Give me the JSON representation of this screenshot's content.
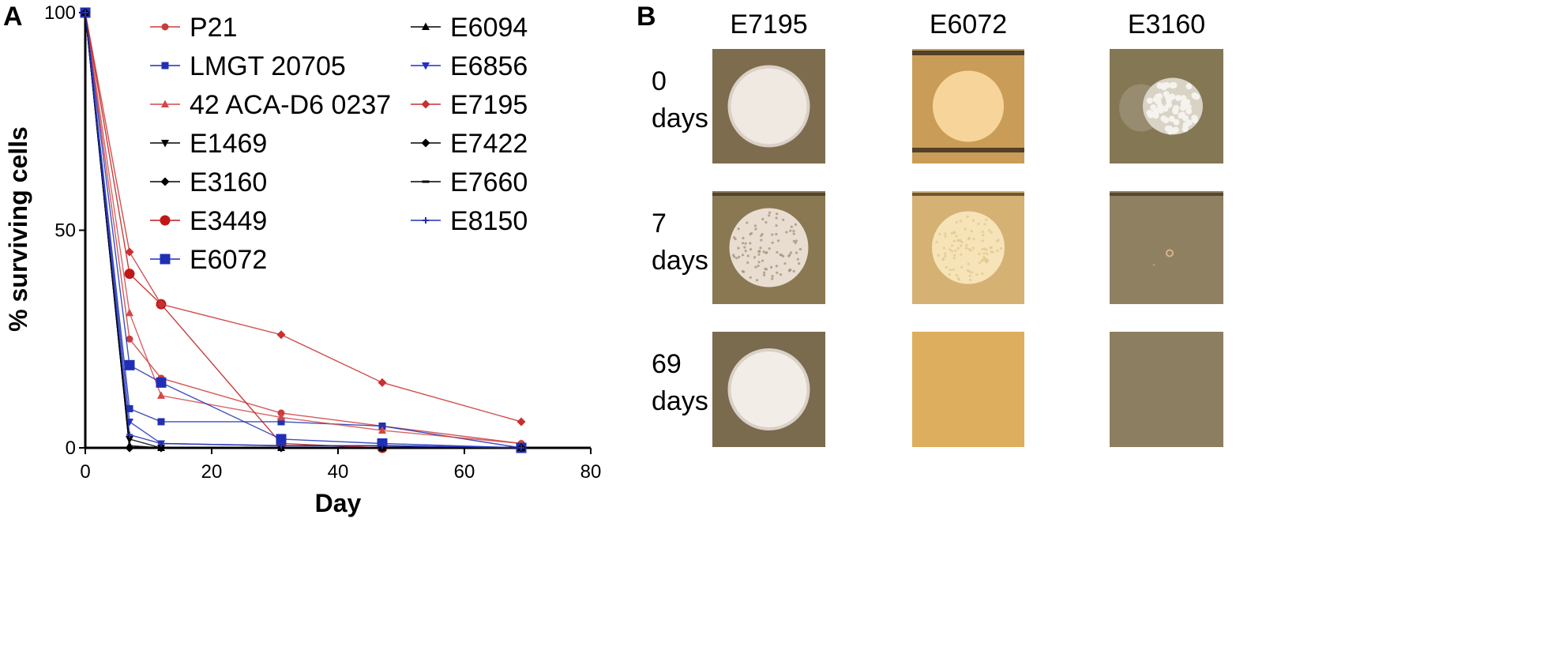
{
  "panel_a_label": "A",
  "panel_b_label": "B",
  "chart_data": {
    "type": "line",
    "title": "",
    "xlabel": "Day",
    "ylabel": "% surviving cells",
    "xlim": [
      0,
      80
    ],
    "ylim": [
      0,
      100
    ],
    "xticks": [
      0,
      20,
      40,
      60,
      80
    ],
    "yticks": [
      0,
      50,
      100
    ],
    "grid": false,
    "legend_position": "top-right",
    "series": [
      {
        "name": "P21",
        "color": "#cc3b3b",
        "marker": "circle",
        "x": [
          0,
          7,
          12,
          31,
          47,
          69
        ],
        "y": [
          100,
          25,
          16,
          8,
          5,
          1
        ]
      },
      {
        "name": "LMGT 20705",
        "color": "#2030b0",
        "marker": "square",
        "x": [
          0,
          7,
          12,
          31,
          47,
          69
        ],
        "y": [
          100,
          9,
          6,
          6,
          5,
          0
        ]
      },
      {
        "name": "42 ACA-D6 0237",
        "color": "#d24848",
        "marker": "triangle-up",
        "x": [
          0,
          7,
          12,
          31,
          47,
          69
        ],
        "y": [
          100,
          31,
          12,
          7,
          4,
          1
        ]
      },
      {
        "name": "E1469",
        "color": "#000000",
        "marker": "triangle-down",
        "x": [
          0,
          7,
          12,
          31,
          47,
          69
        ],
        "y": [
          100,
          2,
          0,
          0,
          0,
          0
        ]
      },
      {
        "name": "E3160",
        "color": "#000000",
        "marker": "diamond",
        "x": [
          0,
          7,
          12,
          31,
          47,
          69
        ],
        "y": [
          100,
          0,
          0,
          0,
          0,
          0
        ]
      },
      {
        "name": "E3449",
        "color": "#c01818",
        "marker": "circle-large",
        "x": [
          0,
          7,
          12,
          31,
          47,
          69
        ],
        "y": [
          100,
          40,
          33,
          1,
          0,
          0
        ]
      },
      {
        "name": "E6072",
        "color": "#1f2fb5",
        "marker": "square-large",
        "x": [
          0,
          7,
          12,
          31,
          47,
          69
        ],
        "y": [
          100,
          19,
          15,
          2,
          1,
          0
        ]
      },
      {
        "name": "E6094",
        "color": "#000000",
        "marker": "triangle-up",
        "x": [
          0,
          7,
          12,
          31,
          47,
          69
        ],
        "y": [
          100,
          0.5,
          0,
          0,
          0,
          0
        ]
      },
      {
        "name": "E6856",
        "color": "#2030c8",
        "marker": "triangle-down",
        "x": [
          0,
          7,
          12,
          31,
          47,
          69
        ],
        "y": [
          100,
          6,
          1,
          0.5,
          0.5,
          0
        ]
      },
      {
        "name": "E7195",
        "color": "#c83030",
        "marker": "diamond",
        "x": [
          0,
          7,
          12,
          31,
          47,
          69
        ],
        "y": [
          100,
          45,
          33,
          26,
          15,
          6
        ]
      },
      {
        "name": "E7422",
        "color": "#000000",
        "marker": "diamond",
        "x": [
          0,
          7,
          12,
          31,
          47,
          69
        ],
        "y": [
          100,
          0,
          0,
          0,
          0,
          0
        ]
      },
      {
        "name": "E7660",
        "color": "#000000",
        "marker": "dash",
        "x": [
          0,
          7,
          12,
          31,
          47,
          69
        ],
        "y": [
          100,
          0,
          0,
          0,
          0,
          0
        ]
      },
      {
        "name": "E8150",
        "color": "#2030b0",
        "marker": "plus",
        "x": [
          0,
          7,
          12,
          31,
          47,
          69
        ],
        "y": [
          100,
          3,
          1,
          0.5,
          0.5,
          0
        ]
      }
    ]
  },
  "panel_b": {
    "columns": [
      "E7195",
      "E6072",
      "E3160"
    ],
    "rows": [
      {
        "label_line1": "0",
        "label_line2": "days"
      },
      {
        "label_line1": "7",
        "label_line2": "days"
      },
      {
        "label_line1": "69",
        "label_line2": "days"
      }
    ],
    "plates": [
      [
        {
          "bg": "#7e6c4e",
          "colony": "smooth-large",
          "colony_color": "#f0e9e2"
        },
        {
          "bg": "#c99d57",
          "colony": "smooth-medium",
          "colony_color": "#f7d59a"
        },
        {
          "bg": "#847754",
          "colony": "rough-cluster",
          "colony_color": "#f5f3ee"
        }
      ],
      [
        {
          "bg": "#8a7853",
          "colony": "granular-large",
          "colony_color": "#e8ddd0"
        },
        {
          "bg": "#d5b174",
          "colony": "granular-medium",
          "colony_color": "#f6e3b8"
        },
        {
          "bg": "#8f8062",
          "colony": "tiny-dot",
          "colony_color": "#c8a878"
        }
      ],
      [
        {
          "bg": "#7a6a4e",
          "colony": "smooth-large",
          "colony_color": "#f3ede8"
        },
        {
          "bg": "#dcae5d",
          "colony": "none",
          "colony_color": "#dcae5d"
        },
        {
          "bg": "#8c7e60",
          "colony": "none",
          "colony_color": "#8c7e60"
        }
      ]
    ]
  }
}
